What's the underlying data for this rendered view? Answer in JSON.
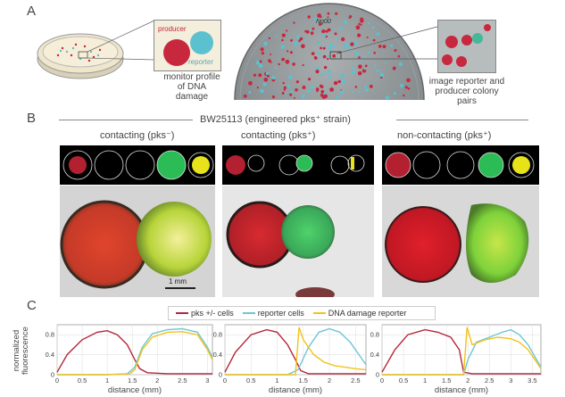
{
  "panelA": {
    "letter": "A",
    "producer_label": "producer",
    "reporter_label": "reporter",
    "caption_left": "monitor profile of DNA damage",
    "caption_left_line1": "monitor profile",
    "caption_left_line2": "of DNA damage",
    "caption_right_line1": "image reporter and",
    "caption_right_line2": "producer colony pairs",
    "plate_marking": "Ng00"
  },
  "panelB": {
    "letter": "B",
    "strain_title": "BW25113 (engineered pks⁺ strain)",
    "conditions": [
      {
        "label": "contacting (pks⁻)"
      },
      {
        "label": "contacting (pks⁺)"
      },
      {
        "label": "non-contacting (pks⁺)"
      }
    ],
    "scale_bar": "1 mm"
  },
  "panelC": {
    "letter": "C",
    "legend": [
      {
        "name": "pks +/- cells",
        "color": "#b5263a"
      },
      {
        "name": "reporter cells",
        "color": "#6cc6d6"
      },
      {
        "name": "DNA damage reporter",
        "color": "#f2c21b"
      }
    ],
    "ylabel_line1": "normalized",
    "ylabel_line2": "fluorescence",
    "xlabel": "distance (mm)"
  },
  "chart_data": [
    {
      "type": "line",
      "x_ticks": [
        "0",
        "0.5",
        "1",
        "1.5",
        "2",
        "2.5",
        "3"
      ],
      "y_ticks": [
        "0",
        "0.4",
        "0.8"
      ],
      "xlim": [
        0,
        3.1
      ],
      "ylim": [
        0,
        1
      ],
      "xlabel": "distance (mm)",
      "series": [
        {
          "name": "pks +/- cells",
          "x": [
            0,
            0.2,
            0.5,
            0.8,
            1.0,
            1.2,
            1.4,
            1.55,
            1.65,
            1.8,
            2.2,
            2.6,
            3.0,
            3.1
          ],
          "y": [
            0.05,
            0.4,
            0.7,
            0.85,
            0.88,
            0.8,
            0.6,
            0.3,
            0.12,
            0.04,
            0.02,
            0.02,
            0.02,
            0.02
          ]
        },
        {
          "name": "reporter cells",
          "x": [
            0,
            1.0,
            1.4,
            1.55,
            1.7,
            1.9,
            2.2,
            2.5,
            2.8,
            3.0,
            3.1
          ],
          "y": [
            0.0,
            0.0,
            0.02,
            0.15,
            0.55,
            0.82,
            0.9,
            0.92,
            0.85,
            0.55,
            0.35
          ]
        },
        {
          "name": "DNA damage reporter",
          "x": [
            0,
            1.0,
            1.45,
            1.55,
            1.7,
            1.9,
            2.2,
            2.5,
            2.8,
            3.0,
            3.1
          ],
          "y": [
            0.0,
            0.0,
            0.02,
            0.1,
            0.5,
            0.75,
            0.85,
            0.86,
            0.8,
            0.5,
            0.3
          ]
        }
      ]
    },
    {
      "type": "line",
      "x_ticks": [
        "0",
        "0.5",
        "1",
        "1.5",
        "2",
        "2.5"
      ],
      "y_ticks": [
        "0",
        "0.4",
        "0.8"
      ],
      "xlim": [
        0,
        2.7
      ],
      "ylim": [
        0,
        1
      ],
      "xlabel": "distance (mm)",
      "series": [
        {
          "name": "pks +/- cells",
          "x": [
            0,
            0.2,
            0.5,
            0.8,
            1.0,
            1.2,
            1.35,
            1.45,
            1.6,
            2.0,
            2.7
          ],
          "y": [
            0.05,
            0.45,
            0.8,
            0.9,
            0.85,
            0.6,
            0.3,
            0.08,
            0.02,
            0.02,
            0.02
          ]
        },
        {
          "name": "reporter cells",
          "x": [
            0,
            1.2,
            1.4,
            1.6,
            1.8,
            2.0,
            2.2,
            2.4,
            2.6,
            2.7
          ],
          "y": [
            0.0,
            0.0,
            0.1,
            0.55,
            0.85,
            0.92,
            0.85,
            0.65,
            0.35,
            0.2
          ]
        },
        {
          "name": "DNA damage reporter",
          "x": [
            0,
            1.35,
            1.42,
            1.5,
            1.7,
            1.9,
            2.1,
            2.3,
            2.5,
            2.7
          ],
          "y": [
            0.0,
            0.0,
            0.95,
            0.7,
            0.4,
            0.25,
            0.18,
            0.15,
            0.12,
            0.1
          ]
        }
      ]
    },
    {
      "type": "line",
      "x_ticks": [
        "0",
        "0.5",
        "1",
        "1.5",
        "2",
        "2.5",
        "3",
        "3.5"
      ],
      "y_ticks": [
        "0",
        "0.4",
        "0.8"
      ],
      "xlim": [
        0,
        3.7
      ],
      "ylim": [
        0,
        1
      ],
      "xlabel": "distance (mm)",
      "series": [
        {
          "name": "pks +/- cells",
          "x": [
            0,
            0.3,
            0.6,
            1.0,
            1.3,
            1.6,
            1.8,
            1.9,
            2.1,
            3.0,
            3.7
          ],
          "y": [
            0.05,
            0.5,
            0.8,
            0.9,
            0.85,
            0.75,
            0.5,
            0.05,
            0.02,
            0.02,
            0.02
          ]
        },
        {
          "name": "reporter cells",
          "x": [
            0,
            1.9,
            2.0,
            2.2,
            2.5,
            2.8,
            3.0,
            3.2,
            3.4,
            3.6,
            3.7
          ],
          "y": [
            0.0,
            0.0,
            0.3,
            0.65,
            0.75,
            0.85,
            0.9,
            0.8,
            0.6,
            0.3,
            0.15
          ]
        },
        {
          "name": "DNA damage reporter",
          "x": [
            0,
            1.9,
            1.98,
            2.1,
            2.4,
            2.7,
            3.0,
            3.2,
            3.4,
            3.6,
            3.7
          ],
          "y": [
            0.0,
            0.0,
            0.95,
            0.6,
            0.7,
            0.75,
            0.72,
            0.65,
            0.5,
            0.25,
            0.12
          ]
        }
      ]
    }
  ]
}
